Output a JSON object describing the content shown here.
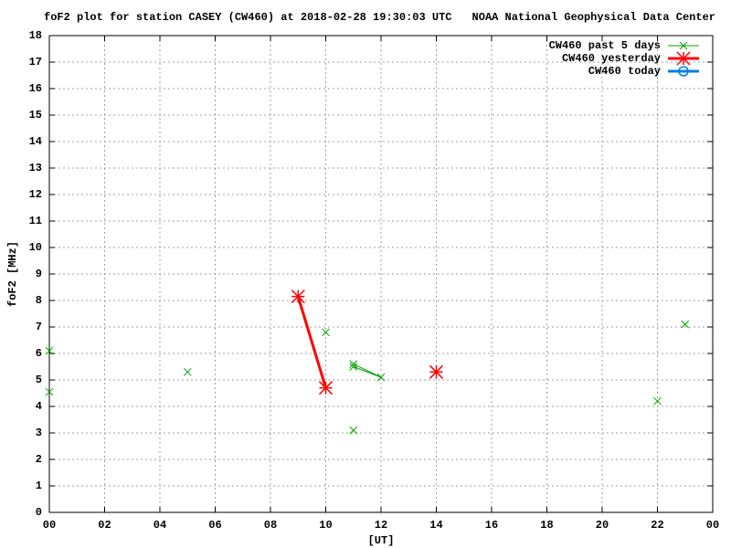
{
  "chart_data": {
    "type": "line",
    "title": "foF2 plot for station CASEY (CW460) at 2018-02-28 19:30:03 UTC",
    "subtitle": "NOAA National Geophysical Data Center",
    "x_label": "[UT]",
    "y_label": "foF2 [MHz]",
    "xlim": [
      0,
      24
    ],
    "xticks": [
      {
        "value": 0,
        "label": "00"
      },
      {
        "value": 2,
        "label": "02"
      },
      {
        "value": 4,
        "label": "04"
      },
      {
        "value": 6,
        "label": "06"
      },
      {
        "value": 8,
        "label": "08"
      },
      10,
      12,
      14,
      16,
      18,
      20,
      22,
      {
        "value": 24,
        "label": "00"
      }
    ],
    "ylim": [
      0,
      18
    ],
    "yticks": [
      0,
      1,
      2,
      3,
      4,
      5,
      6,
      7,
      8,
      9,
      10,
      11,
      12,
      13,
      14,
      15,
      16,
      17,
      18
    ],
    "grid": true,
    "legend": "top-right",
    "series": [
      {
        "name": "CW460 past 5 days",
        "color": "#00a000",
        "marker": "x",
        "x": [
          0,
          null,
          0,
          null,
          5,
          null,
          10,
          null,
          11,
          12,
          11,
          null,
          11,
          null,
          22,
          null,
          23
        ],
        "values": [
          6.1,
          null,
          4.55,
          null,
          5.3,
          null,
          6.8,
          null,
          5.6,
          5.1,
          5.5,
          null,
          3.1,
          null,
          4.2,
          null,
          7.1
        ]
      },
      {
        "name": "CW460 yesterday",
        "color": "#ff0000",
        "marker": "star",
        "x": [
          9,
          10,
          null,
          14
        ],
        "values": [
          8.15,
          4.7,
          null,
          5.3
        ]
      },
      {
        "name": "CW460 today",
        "color": "#0080e0",
        "marker": "circle",
        "x": [],
        "values": []
      }
    ]
  }
}
